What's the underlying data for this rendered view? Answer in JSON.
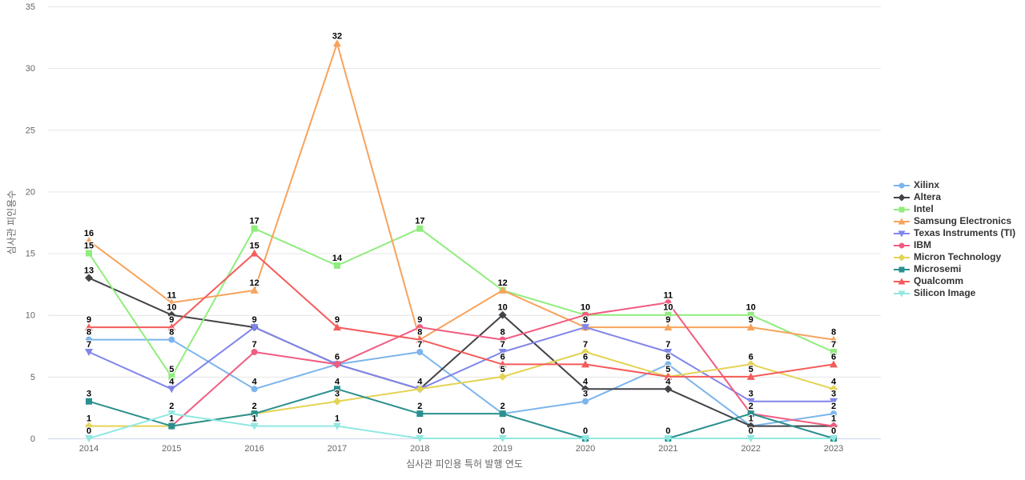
{
  "chart_data": {
    "type": "line",
    "title": "",
    "xlabel": "심사관 피인용 특허 발행 연도",
    "ylabel": "심사관 피인용수",
    "x_categories": [
      "2014",
      "2015",
      "2016",
      "2017",
      "2018",
      "2019",
      "2020",
      "2021",
      "2022",
      "2023"
    ],
    "y_ticks": [
      0,
      5,
      10,
      15,
      20,
      25,
      30,
      35
    ],
    "ylim": [
      0,
      35
    ],
    "grid": "horizontal",
    "grid_color": "#e6e6e6",
    "axis_line_color": "#ccd6eb",
    "tick_label_color": "#666666",
    "data_label_color": "#000000",
    "legend_position": "right",
    "legend_text_color": "#333333",
    "data_labels": true,
    "series": [
      {
        "name": "Xilinx",
        "color": "#7cb5ec",
        "marker": "circle",
        "values": [
          8,
          8,
          4,
          6,
          7,
          2,
          3,
          6,
          1,
          2
        ]
      },
      {
        "name": "Altera",
        "color": "#434348",
        "marker": "diamond",
        "values": [
          13,
          10,
          9,
          6,
          4,
          10,
          4,
          4,
          1,
          1
        ]
      },
      {
        "name": "Intel",
        "color": "#90ed7d",
        "marker": "square",
        "values": [
          15,
          5,
          17,
          14,
          17,
          12,
          10,
          10,
          10,
          7
        ]
      },
      {
        "name": "Samsung Electronics",
        "color": "#f7a35c",
        "marker": "triangle",
        "values": [
          16,
          11,
          12,
          32,
          8,
          12,
          9,
          9,
          9,
          8
        ]
      },
      {
        "name": "Texas Instruments (TI)",
        "color": "#8085e9",
        "marker": "triangle-down",
        "values": [
          7,
          4,
          9,
          6,
          4,
          7,
          9,
          7,
          3,
          3
        ]
      },
      {
        "name": "IBM",
        "color": "#f15c80",
        "marker": "circle",
        "values": [
          null,
          1,
          7,
          6,
          9,
          8,
          10,
          11,
          2,
          1
        ]
      },
      {
        "name": "Micron Technology",
        "color": "#e4d354",
        "marker": "diamond",
        "values": [
          1,
          1,
          2,
          3,
          4,
          5,
          7,
          5,
          6,
          4
        ]
      },
      {
        "name": "Microsemi",
        "color": "#2b908f",
        "marker": "square",
        "values": [
          3,
          1,
          2,
          4,
          2,
          2,
          0,
          0,
          2,
          0
        ]
      },
      {
        "name": "Qualcomm",
        "color": "#f45b5b",
        "marker": "triangle",
        "values": [
          9,
          9,
          15,
          9,
          8,
          6,
          6,
          5,
          5,
          6
        ]
      },
      {
        "name": "Silicon Image",
        "color": "#91e8e1",
        "marker": "triangle-down",
        "values": [
          0,
          2,
          1,
          1,
          0,
          0,
          0,
          0,
          0,
          0
        ]
      }
    ]
  }
}
